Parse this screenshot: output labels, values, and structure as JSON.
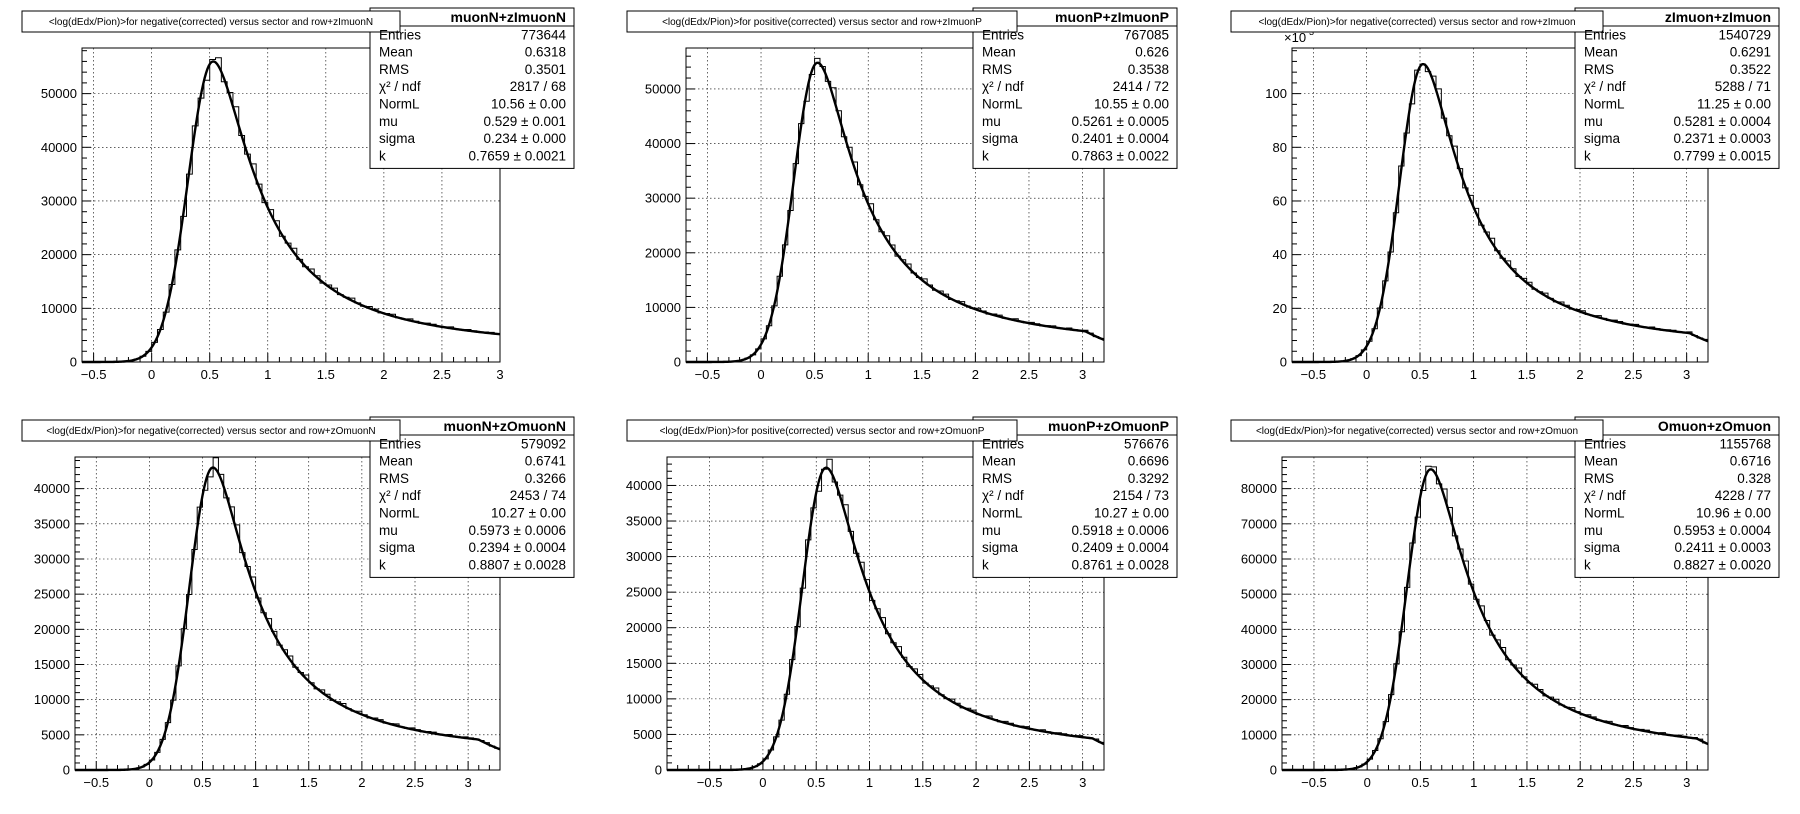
{
  "chart_data": [
    {
      "type": "histogram",
      "title": "<log(dEdx/Pion)>for negative(corrected) versus sector and row+zImuonN",
      "stats_header": "muonN+zImuonN",
      "stats": [
        [
          "Entries",
          "773644"
        ],
        [
          "Mean",
          "0.6318"
        ],
        [
          "RMS",
          "0.3501"
        ],
        [
          "χ² / ndf",
          "2817 / 68"
        ],
        [
          "NormL",
          "10.56 ± 0.00"
        ],
        [
          "mu",
          "0.529 ± 0.001"
        ],
        [
          "sigma",
          "0.234 ± 0.000"
        ],
        [
          "k",
          "0.7659 ± 0.0021"
        ]
      ],
      "x_ticks": [
        -0.5,
        0,
        0.5,
        1,
        1.5,
        2,
        2.5,
        3
      ],
      "x_tick_labels": [
        "−0.5",
        "0",
        "0.5",
        "1",
        "1.5",
        "2",
        "2.5",
        "3"
      ],
      "xlim": [
        -0.6,
        3.0
      ],
      "y_ticks": [
        0,
        10000,
        20000,
        30000,
        40000,
        50000
      ],
      "y_tick_labels": [
        "0",
        "10000",
        "20000",
        "30000",
        "40000",
        "50000"
      ],
      "ylim": [
        0,
        58500
      ],
      "y_exponent_label": "",
      "peak_x": 0.529,
      "peak_y": 56000,
      "sigma": 0.234,
      "k": 0.766
    },
    {
      "type": "histogram",
      "title": "<log(dEdx/Pion)>for positive(corrected) versus sector and row+zImuonP",
      "stats_header": "muonP+zImuonP",
      "stats": [
        [
          "Entries",
          "767085"
        ],
        [
          "Mean",
          "0.626"
        ],
        [
          "RMS",
          "0.3538"
        ],
        [
          "χ² / ndf",
          "2414 / 72"
        ],
        [
          "NormL",
          "10.55 ± 0.00"
        ],
        [
          "mu",
          "0.5261 ± 0.0005"
        ],
        [
          "sigma",
          "0.2401 ± 0.0004"
        ],
        [
          "k",
          "0.7863 ± 0.0022"
        ]
      ],
      "x_ticks": [
        -0.5,
        0,
        0.5,
        1,
        1.5,
        2,
        2.5,
        3
      ],
      "x_tick_labels": [
        "−0.5",
        "0",
        "0.5",
        "1",
        "1.5",
        "2",
        "2.5",
        "3"
      ],
      "xlim": [
        -0.7,
        3.2
      ],
      "y_ticks": [
        0,
        10000,
        20000,
        30000,
        40000,
        50000
      ],
      "y_tick_labels": [
        "0",
        "10000",
        "20000",
        "30000",
        "40000",
        "50000"
      ],
      "ylim": [
        0,
        57500
      ],
      "y_exponent_label": "",
      "peak_x": 0.526,
      "peak_y": 54800,
      "sigma": 0.24,
      "k": 0.786
    },
    {
      "type": "histogram",
      "title": "<log(dEdx/Pion)>for negative(corrected) versus sector and row+zImuon",
      "stats_header": "zImuon+zImuon",
      "stats": [
        [
          "Entries",
          "1540729"
        ],
        [
          "Mean",
          "0.6291"
        ],
        [
          "RMS",
          "0.3522"
        ],
        [
          "χ² / ndf",
          "5288 / 71"
        ],
        [
          "NormL",
          "11.25 ± 0.00"
        ],
        [
          "mu",
          "0.5281 ± 0.0004"
        ],
        [
          "sigma",
          "0.2371 ± 0.0003"
        ],
        [
          "k",
          "0.7799 ± 0.0015"
        ]
      ],
      "x_ticks": [
        -0.5,
        0,
        0.5,
        1,
        1.5,
        2,
        2.5,
        3
      ],
      "x_tick_labels": [
        "−0.5",
        "0",
        "0.5",
        "1",
        "1.5",
        "2",
        "2.5",
        "3"
      ],
      "xlim": [
        -0.7,
        3.2
      ],
      "y_ticks": [
        0,
        20,
        40,
        60,
        80,
        100
      ],
      "y_tick_labels": [
        "0",
        "20",
        "40",
        "60",
        "80",
        "100"
      ],
      "ylim": [
        0,
        117
      ],
      "y_exponent_label": "×10",
      "y_exponent_power": "3",
      "peak_x": 0.528,
      "peak_y": 111,
      "sigma": 0.237,
      "k": 0.78
    },
    {
      "type": "histogram",
      "title": "<log(dEdx/Pion)>for negative(corrected) versus sector and row+zOmuonN",
      "stats_header": "muonN+zOmuonN",
      "stats": [
        [
          "Entries",
          "579092"
        ],
        [
          "Mean",
          "0.6741"
        ],
        [
          "RMS",
          "0.3266"
        ],
        [
          "χ² / ndf",
          "2453 / 74"
        ],
        [
          "NormL",
          "10.27 ± 0.00"
        ],
        [
          "mu",
          "0.5973 ± 0.0006"
        ],
        [
          "sigma",
          "0.2394 ± 0.0004"
        ],
        [
          "k",
          "0.8807 ± 0.0028"
        ]
      ],
      "x_ticks": [
        -0.5,
        0,
        0.5,
        1,
        1.5,
        2,
        2.5,
        3
      ],
      "x_tick_labels": [
        "−0.5",
        "0",
        "0.5",
        "1",
        "1.5",
        "2",
        "2.5",
        "3"
      ],
      "xlim": [
        -0.7,
        3.3
      ],
      "y_ticks": [
        0,
        5000,
        10000,
        15000,
        20000,
        25000,
        30000,
        35000,
        40000
      ],
      "y_tick_labels": [
        "0",
        "5000",
        "10000",
        "15000",
        "20000",
        "25000",
        "30000",
        "35000",
        "40000"
      ],
      "ylim": [
        0,
        44500
      ],
      "y_exponent_label": "",
      "peak_x": 0.597,
      "peak_y": 43000,
      "sigma": 0.239,
      "k": 0.881
    },
    {
      "type": "histogram",
      "title": "<log(dEdx/Pion)>for positive(corrected) versus sector and row+zOmuonP",
      "stats_header": "muonP+zOmuonP",
      "stats": [
        [
          "Entries",
          "576676"
        ],
        [
          "Mean",
          "0.6696"
        ],
        [
          "RMS",
          "0.3292"
        ],
        [
          "χ² / ndf",
          "2154 / 73"
        ],
        [
          "NormL",
          "10.27 ± 0.00"
        ],
        [
          "mu",
          "0.5918 ± 0.0006"
        ],
        [
          "sigma",
          "0.2409 ± 0.0004"
        ],
        [
          "k",
          "0.8761 ± 0.0028"
        ]
      ],
      "x_ticks": [
        -0.5,
        0,
        0.5,
        1,
        1.5,
        2,
        2.5,
        3
      ],
      "x_tick_labels": [
        "−0.5",
        "0",
        "0.5",
        "1",
        "1.5",
        "2",
        "2.5",
        "3"
      ],
      "xlim": [
        -0.9,
        3.2
      ],
      "y_ticks": [
        0,
        5000,
        10000,
        15000,
        20000,
        25000,
        30000,
        35000,
        40000
      ],
      "y_tick_labels": [
        "0",
        "5000",
        "10000",
        "15000",
        "20000",
        "25000",
        "30000",
        "35000",
        "40000"
      ],
      "ylim": [
        0,
        44000
      ],
      "y_exponent_label": "",
      "peak_x": 0.592,
      "peak_y": 42500,
      "sigma": 0.241,
      "k": 0.876
    },
    {
      "type": "histogram",
      "title": "<log(dEdx/Pion)>for negative(corrected) versus sector and row+zOmuon",
      "stats_header": "Omuon+zOmuon",
      "stats": [
        [
          "Entries",
          "1155768"
        ],
        [
          "Mean",
          "0.6716"
        ],
        [
          "RMS",
          "0.328"
        ],
        [
          "χ² / ndf",
          "4228 / 77"
        ],
        [
          "NormL",
          "10.96 ± 0.00"
        ],
        [
          "mu",
          "0.5953 ± 0.0004"
        ],
        [
          "sigma",
          "0.2411 ± 0.0003"
        ],
        [
          "k",
          "0.8827 ± 0.0020"
        ]
      ],
      "x_ticks": [
        -0.5,
        0,
        0.5,
        1,
        1.5,
        2,
        2.5,
        3
      ],
      "x_tick_labels": [
        "−0.5",
        "0",
        "0.5",
        "1",
        "1.5",
        "2",
        "2.5",
        "3"
      ],
      "xlim": [
        -0.8,
        3.2
      ],
      "y_ticks": [
        0,
        10000,
        20000,
        30000,
        40000,
        50000,
        60000,
        70000,
        80000
      ],
      "y_tick_labels": [
        "0",
        "10000",
        "20000",
        "30000",
        "40000",
        "50000",
        "60000",
        "70000",
        "80000"
      ],
      "ylim": [
        0,
        89000
      ],
      "y_exponent_label": "",
      "peak_x": 0.595,
      "peak_y": 85500,
      "sigma": 0.241,
      "k": 0.883
    }
  ]
}
